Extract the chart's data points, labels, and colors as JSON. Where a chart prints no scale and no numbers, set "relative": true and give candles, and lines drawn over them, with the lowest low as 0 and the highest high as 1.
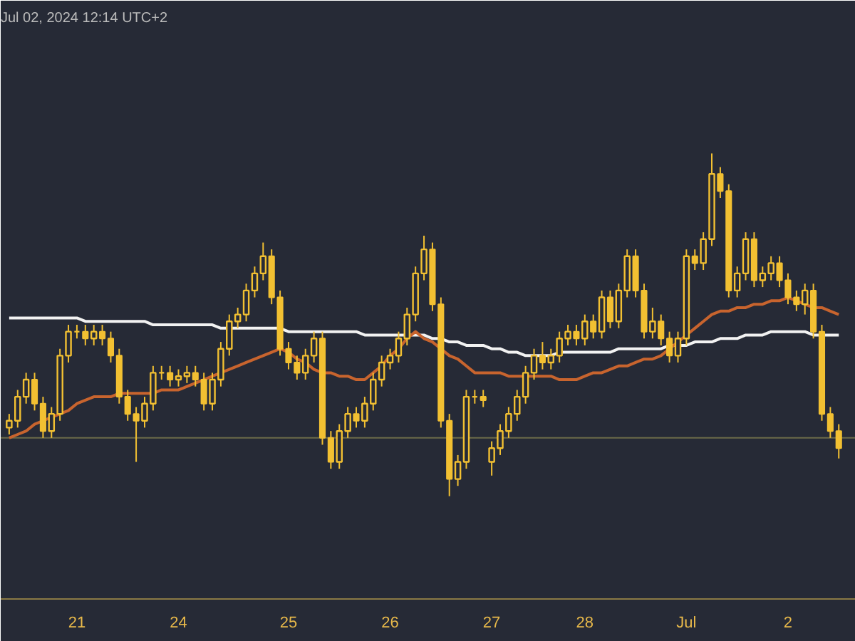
{
  "chart_data": {
    "type": "candlestick",
    "relative": true,
    "color": "#f2c032",
    "annotations": [
      "Jul 02, 2024 12:14 UTC+2"
    ],
    "categories": [
      null,
      null,
      null,
      null,
      null,
      null,
      null,
      null,
      "21",
      null,
      null,
      null,
      null,
      null,
      null,
      null,
      null,
      null,
      null,
      null,
      "24",
      null,
      null,
      null,
      null,
      null,
      null,
      null,
      null,
      null,
      null,
      null,
      null,
      "25",
      null,
      null,
      null,
      null,
      null,
      null,
      null,
      null,
      null,
      null,
      null,
      "26",
      null,
      null,
      null,
      null,
      null,
      null,
      null,
      null,
      null,
      null,
      null,
      "27",
      null,
      null,
      null,
      null,
      null,
      null,
      null,
      null,
      null,
      null,
      "28",
      null,
      null,
      null,
      null,
      null,
      null,
      null,
      null,
      null,
      null,
      null,
      "Jul",
      null,
      null,
      null,
      null,
      null,
      null,
      null,
      null,
      null,
      null,
      null,
      "2",
      null,
      null,
      null,
      null,
      null,
      null
    ],
    "ohlc": [
      [
        0.2,
        0.24,
        0.18,
        0.22
      ],
      [
        0.22,
        0.31,
        0.2,
        0.29
      ],
      [
        0.29,
        0.36,
        0.27,
        0.34
      ],
      [
        0.34,
        0.36,
        0.25,
        0.27
      ],
      [
        0.27,
        0.29,
        0.17,
        0.19
      ],
      [
        0.19,
        0.26,
        0.17,
        0.24
      ],
      [
        0.24,
        0.43,
        0.22,
        0.41
      ],
      [
        0.41,
        0.5,
        0.39,
        0.48
      ],
      [
        0.48,
        0.5,
        0.46,
        0.48
      ],
      [
        0.48,
        0.5,
        0.44,
        0.46
      ],
      [
        0.46,
        0.5,
        0.44,
        0.48
      ],
      [
        0.48,
        0.5,
        0.44,
        0.46
      ],
      [
        0.46,
        0.48,
        0.39,
        0.41
      ],
      [
        0.41,
        0.43,
        0.27,
        0.29
      ],
      [
        0.29,
        0.31,
        0.22,
        0.24
      ],
      [
        0.24,
        0.26,
        0.1,
        0.22
      ],
      [
        0.22,
        0.29,
        0.2,
        0.27
      ],
      [
        0.27,
        0.38,
        0.25,
        0.36
      ],
      [
        0.36,
        0.38,
        0.34,
        0.36
      ],
      [
        0.36,
        0.38,
        0.32,
        0.34
      ],
      [
        0.34,
        0.37,
        0.32,
        0.35
      ],
      [
        0.35,
        0.38,
        0.33,
        0.36
      ],
      [
        0.36,
        0.38,
        0.32,
        0.34
      ],
      [
        0.34,
        0.36,
        0.25,
        0.27
      ],
      [
        0.27,
        0.36,
        0.25,
        0.34
      ],
      [
        0.34,
        0.45,
        0.32,
        0.43
      ],
      [
        0.43,
        0.53,
        0.41,
        0.51
      ],
      [
        0.51,
        0.55,
        0.49,
        0.53
      ],
      [
        0.53,
        0.62,
        0.51,
        0.6
      ],
      [
        0.6,
        0.67,
        0.58,
        0.65
      ],
      [
        0.65,
        0.74,
        0.63,
        0.7
      ],
      [
        0.7,
        0.72,
        0.56,
        0.58
      ],
      [
        0.58,
        0.6,
        0.41,
        0.43
      ],
      [
        0.43,
        0.45,
        0.37,
        0.39
      ],
      [
        0.39,
        0.41,
        0.34,
        0.36
      ],
      [
        0.36,
        0.43,
        0.34,
        0.41
      ],
      [
        0.41,
        0.48,
        0.39,
        0.46
      ],
      [
        0.46,
        0.48,
        0.15,
        0.17
      ],
      [
        0.17,
        0.19,
        0.08,
        0.1
      ],
      [
        0.1,
        0.21,
        0.08,
        0.19
      ],
      [
        0.19,
        0.26,
        0.17,
        0.24
      ],
      [
        0.24,
        0.26,
        0.2,
        0.22
      ],
      [
        0.22,
        0.29,
        0.2,
        0.27
      ],
      [
        0.27,
        0.36,
        0.25,
        0.34
      ],
      [
        0.34,
        0.41,
        0.32,
        0.39
      ],
      [
        0.39,
        0.43,
        0.37,
        0.41
      ],
      [
        0.41,
        0.48,
        0.39,
        0.46
      ],
      [
        0.46,
        0.55,
        0.44,
        0.53
      ],
      [
        0.53,
        0.67,
        0.51,
        0.65
      ],
      [
        0.65,
        0.76,
        0.63,
        0.72
      ],
      [
        0.72,
        0.74,
        0.54,
        0.56
      ],
      [
        0.56,
        0.58,
        0.2,
        0.22
      ],
      [
        0.22,
        0.24,
        0.0,
        0.05
      ],
      [
        0.05,
        0.12,
        0.03,
        0.1
      ],
      [
        0.1,
        0.31,
        0.08,
        0.29
      ],
      [
        0.29,
        0.31,
        0.27,
        0.29
      ],
      [
        0.29,
        0.31,
        0.26,
        0.28
      ],
      [
        0.1,
        0.16,
        0.06,
        0.14
      ],
      [
        0.14,
        0.21,
        0.12,
        0.19
      ],
      [
        0.19,
        0.26,
        0.17,
        0.24
      ],
      [
        0.24,
        0.31,
        0.22,
        0.29
      ],
      [
        0.29,
        0.38,
        0.27,
        0.36
      ],
      [
        0.36,
        0.43,
        0.34,
        0.41
      ],
      [
        0.41,
        0.45,
        0.37,
        0.39
      ],
      [
        0.39,
        0.43,
        0.37,
        0.41
      ],
      [
        0.41,
        0.48,
        0.39,
        0.46
      ],
      [
        0.46,
        0.5,
        0.44,
        0.48
      ],
      [
        0.48,
        0.5,
        0.44,
        0.46
      ],
      [
        0.46,
        0.53,
        0.44,
        0.51
      ],
      [
        0.51,
        0.53,
        0.46,
        0.48
      ],
      [
        0.48,
        0.6,
        0.46,
        0.58
      ],
      [
        0.58,
        0.6,
        0.49,
        0.51
      ],
      [
        0.51,
        0.62,
        0.49,
        0.6
      ],
      [
        0.6,
        0.72,
        0.58,
        0.7
      ],
      [
        0.7,
        0.72,
        0.58,
        0.6
      ],
      [
        0.6,
        0.62,
        0.46,
        0.48
      ],
      [
        0.48,
        0.55,
        0.46,
        0.51
      ],
      [
        0.51,
        0.53,
        0.44,
        0.46
      ],
      [
        0.46,
        0.48,
        0.39,
        0.41
      ],
      [
        0.41,
        0.48,
        0.39,
        0.46
      ],
      [
        0.46,
        0.72,
        0.44,
        0.7
      ],
      [
        0.7,
        0.72,
        0.66,
        0.68
      ],
      [
        0.68,
        0.77,
        0.66,
        0.75
      ],
      [
        0.75,
        1.0,
        0.73,
        0.94
      ],
      [
        0.94,
        0.96,
        0.87,
        0.89
      ],
      [
        0.89,
        0.91,
        0.58,
        0.6
      ],
      [
        0.6,
        0.67,
        0.58,
        0.65
      ],
      [
        0.65,
        0.77,
        0.63,
        0.75
      ],
      [
        0.75,
        0.77,
        0.61,
        0.63
      ],
      [
        0.63,
        0.67,
        0.61,
        0.65
      ],
      [
        0.65,
        0.7,
        0.63,
        0.68
      ],
      [
        0.68,
        0.7,
        0.61,
        0.63
      ],
      [
        0.63,
        0.65,
        0.56,
        0.58
      ],
      [
        0.58,
        0.6,
        0.54,
        0.56
      ],
      [
        0.56,
        0.62,
        0.53,
        0.6
      ],
      [
        0.6,
        0.62,
        0.46,
        0.48
      ],
      [
        0.48,
        0.5,
        0.22,
        0.24
      ],
      [
        0.24,
        0.26,
        0.17,
        0.19
      ],
      [
        0.19,
        0.21,
        0.11,
        0.14
      ]
    ],
    "series": [
      {
        "type": "line",
        "color": "#f2f2f2",
        "values": [
          0.52,
          0.52,
          0.52,
          0.52,
          0.52,
          0.52,
          0.52,
          0.52,
          0.52,
          0.51,
          0.51,
          0.51,
          0.51,
          0.51,
          0.51,
          0.51,
          0.51,
          0.5,
          0.5,
          0.5,
          0.5,
          0.5,
          0.5,
          0.5,
          0.5,
          0.49,
          0.49,
          0.49,
          0.49,
          0.49,
          0.49,
          0.49,
          0.49,
          0.48,
          0.48,
          0.48,
          0.48,
          0.48,
          0.48,
          0.48,
          0.48,
          0.48,
          0.47,
          0.47,
          0.47,
          0.47,
          0.47,
          0.47,
          0.47,
          0.47,
          0.46,
          0.46,
          0.45,
          0.45,
          0.44,
          0.44,
          0.44,
          0.43,
          0.43,
          0.42,
          0.42,
          0.41,
          0.41,
          0.41,
          0.41,
          0.42,
          0.42,
          0.42,
          0.42,
          0.42,
          0.42,
          0.42,
          0.43,
          0.43,
          0.43,
          0.43,
          0.43,
          0.43,
          0.44,
          0.44,
          0.44,
          0.45,
          0.45,
          0.45,
          0.46,
          0.46,
          0.46,
          0.47,
          0.47,
          0.47,
          0.48,
          0.48,
          0.48,
          0.48,
          0.48,
          0.47,
          0.47,
          0.47,
          0.47
        ]
      },
      {
        "type": "line",
        "color": "#c8642e",
        "values": [
          0.17,
          0.18,
          0.19,
          0.21,
          0.22,
          0.23,
          0.24,
          0.25,
          0.27,
          0.28,
          0.29,
          0.29,
          0.29,
          0.3,
          0.3,
          0.3,
          0.3,
          0.3,
          0.31,
          0.31,
          0.31,
          0.32,
          0.33,
          0.34,
          0.35,
          0.36,
          0.37,
          0.38,
          0.39,
          0.4,
          0.41,
          0.42,
          0.43,
          0.42,
          0.4,
          0.39,
          0.37,
          0.36,
          0.36,
          0.35,
          0.35,
          0.34,
          0.34,
          0.36,
          0.38,
          0.41,
          0.43,
          0.46,
          0.48,
          0.46,
          0.45,
          0.43,
          0.41,
          0.4,
          0.38,
          0.36,
          0.36,
          0.36,
          0.36,
          0.35,
          0.35,
          0.35,
          0.35,
          0.35,
          0.35,
          0.34,
          0.34,
          0.34,
          0.35,
          0.36,
          0.36,
          0.37,
          0.38,
          0.38,
          0.39,
          0.4,
          0.4,
          0.41,
          0.43,
          0.45,
          0.47,
          0.49,
          0.51,
          0.53,
          0.54,
          0.54,
          0.55,
          0.55,
          0.56,
          0.56,
          0.57,
          0.57,
          0.58,
          0.57,
          0.56,
          0.55,
          0.55,
          0.54,
          0.53
        ]
      }
    ],
    "ref_lines": [
      {
        "axis": "y",
        "value": 0.17,
        "color": "#6b6a4a"
      }
    ],
    "grid": false
  }
}
